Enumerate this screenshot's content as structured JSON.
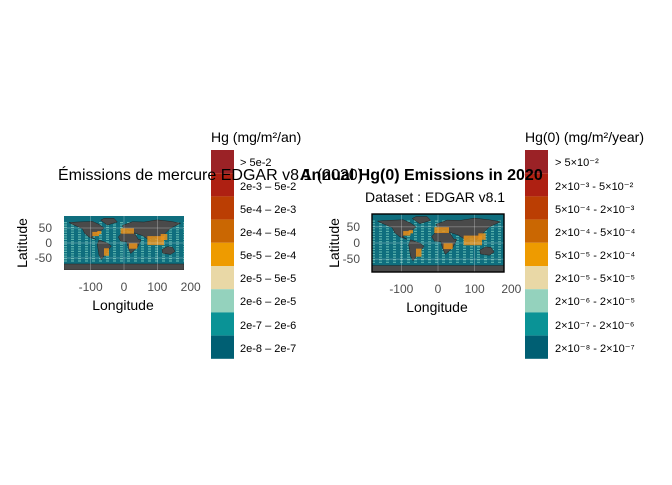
{
  "colors": {
    "ocean": "#0f6e7e",
    "ocean_light": "#6fc3b8",
    "land": "#4a4a4a",
    "hotspot": "#e8901a",
    "text": "#000000",
    "tick_text": "#4d4d4d"
  },
  "legend_colors": [
    "#9b2226",
    "#ae2012",
    "#bb3e03",
    "#ca6702",
    "#ee9b00",
    "#e9d8a6",
    "#94d2bd",
    "#0a9396",
    "#005f73"
  ],
  "chart_data": [
    {
      "type": "heatmap",
      "title": "Émissions de mercure EDGAR v8.1 (2020)",
      "subtitle": "",
      "xlabel": "Longitude",
      "ylabel": "Latitude",
      "xlim": [
        -180,
        180
      ],
      "ylim": [
        -90,
        90
      ],
      "xticks": [
        "-100",
        "0",
        "100",
        "200"
      ],
      "xtick_values": [
        -100,
        0,
        100,
        200
      ],
      "yticks": [
        "50",
        "0",
        "-50"
      ],
      "ytick_values": [
        50,
        0,
        -50
      ],
      "panel_border": false,
      "grid": true,
      "legend": {
        "position": "right",
        "title": "Hg (mg/m²/an)",
        "labels": [
          "> 5e-2",
          "2e-3 – 5e-2",
          "5e-4 – 2e-3",
          "2e-4 – 5e-4",
          "5e-5 – 2e-4",
          "2e-5 – 5e-5",
          "2e-6 – 2e-5",
          "2e-7 – 2e-6",
          "2e-8 – 2e-7"
        ]
      }
    },
    {
      "type": "heatmap",
      "title": "Annual Hg(0) Emissions in 2020",
      "subtitle": "Dataset : EDGAR v8.1",
      "xlabel": "Longitude",
      "ylabel": "Latitude",
      "xlim": [
        -180,
        180
      ],
      "ylim": [
        -90,
        90
      ],
      "xticks": [
        "-100",
        "0",
        "100",
        "200"
      ],
      "xtick_values": [
        -100,
        0,
        100,
        200
      ],
      "yticks": [
        "50",
        "0",
        "-50"
      ],
      "ytick_values": [
        50,
        0,
        -50
      ],
      "panel_border": true,
      "grid": true,
      "legend": {
        "position": "right",
        "title": "Hg(0) (mg/m²/year)",
        "labels": [
          "> 5×10⁻²",
          "2×10⁻³ - 5×10⁻²",
          "5×10⁻⁴ - 2×10⁻³",
          "2×10⁻⁴ - 5×10⁻⁴",
          "5×10⁻⁵ - 2×10⁻⁴",
          "2×10⁻⁵ - 5×10⁻⁵",
          "2×10⁻⁶ - 2×10⁻⁵",
          "2×10⁻⁷ - 2×10⁻⁶",
          "2×10⁻⁸ - 2×10⁻⁷"
        ]
      }
    }
  ]
}
